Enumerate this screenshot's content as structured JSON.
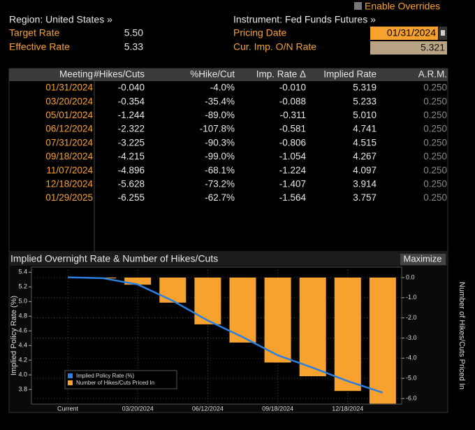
{
  "header": {
    "enable_overrides": "Enable Overrides",
    "region": "Region: United States »",
    "target_rate_label": "Target Rate",
    "target_rate": "5.50",
    "effective_rate_label": "Effective Rate",
    "effective_rate": "5.33",
    "instrument": "Instrument: Fed Funds Futures »",
    "pricing_date_label": "Pricing Date",
    "pricing_date": "01/31/2024",
    "cur_imp_label": "Cur. Imp. O/N Rate",
    "cur_imp": "5.321"
  },
  "table": {
    "columns": [
      "Meeting",
      "#Hikes/Cuts",
      "%Hike/Cut",
      "Imp. Rate Δ",
      "Implied Rate",
      "A.R.M."
    ],
    "rows": [
      [
        "01/31/2024",
        "-0.040",
        "-4.0%",
        "-0.010",
        "5.319",
        "0.250"
      ],
      [
        "03/20/2024",
        "-0.354",
        "-35.4%",
        "-0.088",
        "5.233",
        "0.250"
      ],
      [
        "05/01/2024",
        "-1.244",
        "-89.0%",
        "-0.311",
        "5.010",
        "0.250"
      ],
      [
        "06/12/2024",
        "-2.322",
        "-107.8%",
        "-0.581",
        "4.741",
        "0.250"
      ],
      [
        "07/31/2024",
        "-3.225",
        "-90.3%",
        "-0.806",
        "4.515",
        "0.250"
      ],
      [
        "09/18/2024",
        "-4.215",
        "-99.0%",
        "-1.054",
        "4.267",
        "0.250"
      ],
      [
        "11/07/2024",
        "-4.896",
        "-68.1%",
        "-1.224",
        "4.097",
        "0.250"
      ],
      [
        "12/18/2024",
        "-5.628",
        "-73.2%",
        "-1.407",
        "3.914",
        "0.250"
      ],
      [
        "01/29/2025",
        "-6.255",
        "-62.7%",
        "-1.564",
        "3.757",
        "0.250"
      ]
    ]
  },
  "chart_data": {
    "type": "combo",
    "title": "Implied Overnight Rate & Number of Hikes/Cuts",
    "button": "Maximize",
    "categories": [
      "Current",
      null,
      "03/20/2024",
      null,
      "06/12/2024",
      null,
      "09/18/2024",
      null,
      "12/18/2024",
      null
    ],
    "series": [
      {
        "name": "Implied Policy Rate (%)",
        "type": "line",
        "color": "#2a7fe0",
        "values": [
          5.33,
          5.319,
          5.233,
          5.01,
          4.741,
          4.515,
          4.267,
          4.097,
          3.914,
          3.757
        ]
      },
      {
        "name": "Number of Hikes/Cuts Priced In",
        "type": "bar",
        "axis": "y2",
        "color": "#f7a22e",
        "values": [
          null,
          -0.04,
          -0.354,
          -1.244,
          -2.322,
          -3.225,
          -4.215,
          -4.896,
          -5.628,
          -6.255
        ]
      }
    ],
    "ylabel": "Implied Policy Rate (%)",
    "y2label": "Number of Hikes/Cuts Priced In",
    "ylim": [
      3.6,
      5.47
    ],
    "yticks": [
      3.8,
      {
        "value": 4,
        "label": "4.0"
      },
      4.2,
      4.4,
      4.6,
      4.8,
      {
        "value": 5,
        "label": "5.0"
      },
      5.2,
      5.4
    ],
    "y2lim": [
      -6.28,
      0.52
    ],
    "y2ticks": [
      {
        "value": 0,
        "label": "0.0"
      },
      {
        "value": -1,
        "label": "-1.0"
      },
      {
        "value": -2,
        "label": "-2.0"
      },
      {
        "value": -3,
        "label": "-3.0"
      },
      {
        "value": -4,
        "label": "-4.0"
      },
      {
        "value": -5,
        "label": "-5.0"
      },
      {
        "value": -6,
        "label": "-6.0"
      }
    ],
    "grid": true,
    "legend": "lower left"
  }
}
